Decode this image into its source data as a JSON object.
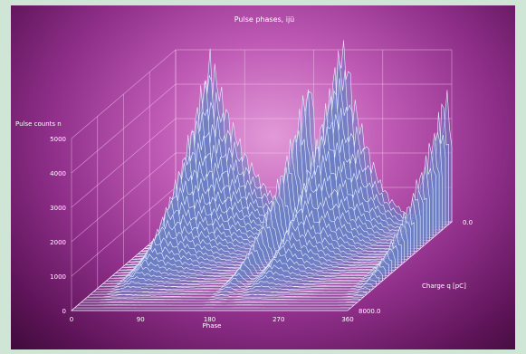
{
  "chart_data": {
    "type": "area",
    "title": "Pulse phases, ijü",
    "zlabel": "Pulse counts n",
    "xlabel": "Phase",
    "ylabel": "Charge q [pC]",
    "x_ticks": [
      "0",
      "90",
      "180",
      "270",
      "360"
    ],
    "z_ticks": [
      "0",
      "1000",
      "2000",
      "3000",
      "4000",
      "5000"
    ],
    "y_ticks": [
      "0.0",
      "8000.0"
    ],
    "zlim": [
      0,
      5000
    ],
    "xlim": [
      0,
      360
    ],
    "ylim": [
      0,
      8000
    ],
    "grid": true,
    "series": [
      {
        "x": [
          0,
          20,
          35,
          45,
          55,
          70,
          90,
          110,
          130,
          150,
          160,
          175,
          190,
          200,
          215,
          225,
          235,
          250,
          265,
          280,
          300,
          330,
          345,
          352,
          360
        ],
        "values": [
          0,
          200,
          2800,
          5200,
          4300,
          3200,
          2100,
          1300,
          700,
          350,
          200,
          4800,
          300,
          1800,
          5600,
          4800,
          3500,
          2300,
          1300,
          700,
          250,
          150,
          1500,
          4300,
          2500
        ]
      }
    ]
  },
  "colors": {
    "background": "#cfe6d6",
    "wave_line": "#e8f0ff",
    "wave_fill": "#6e7fc4"
  }
}
